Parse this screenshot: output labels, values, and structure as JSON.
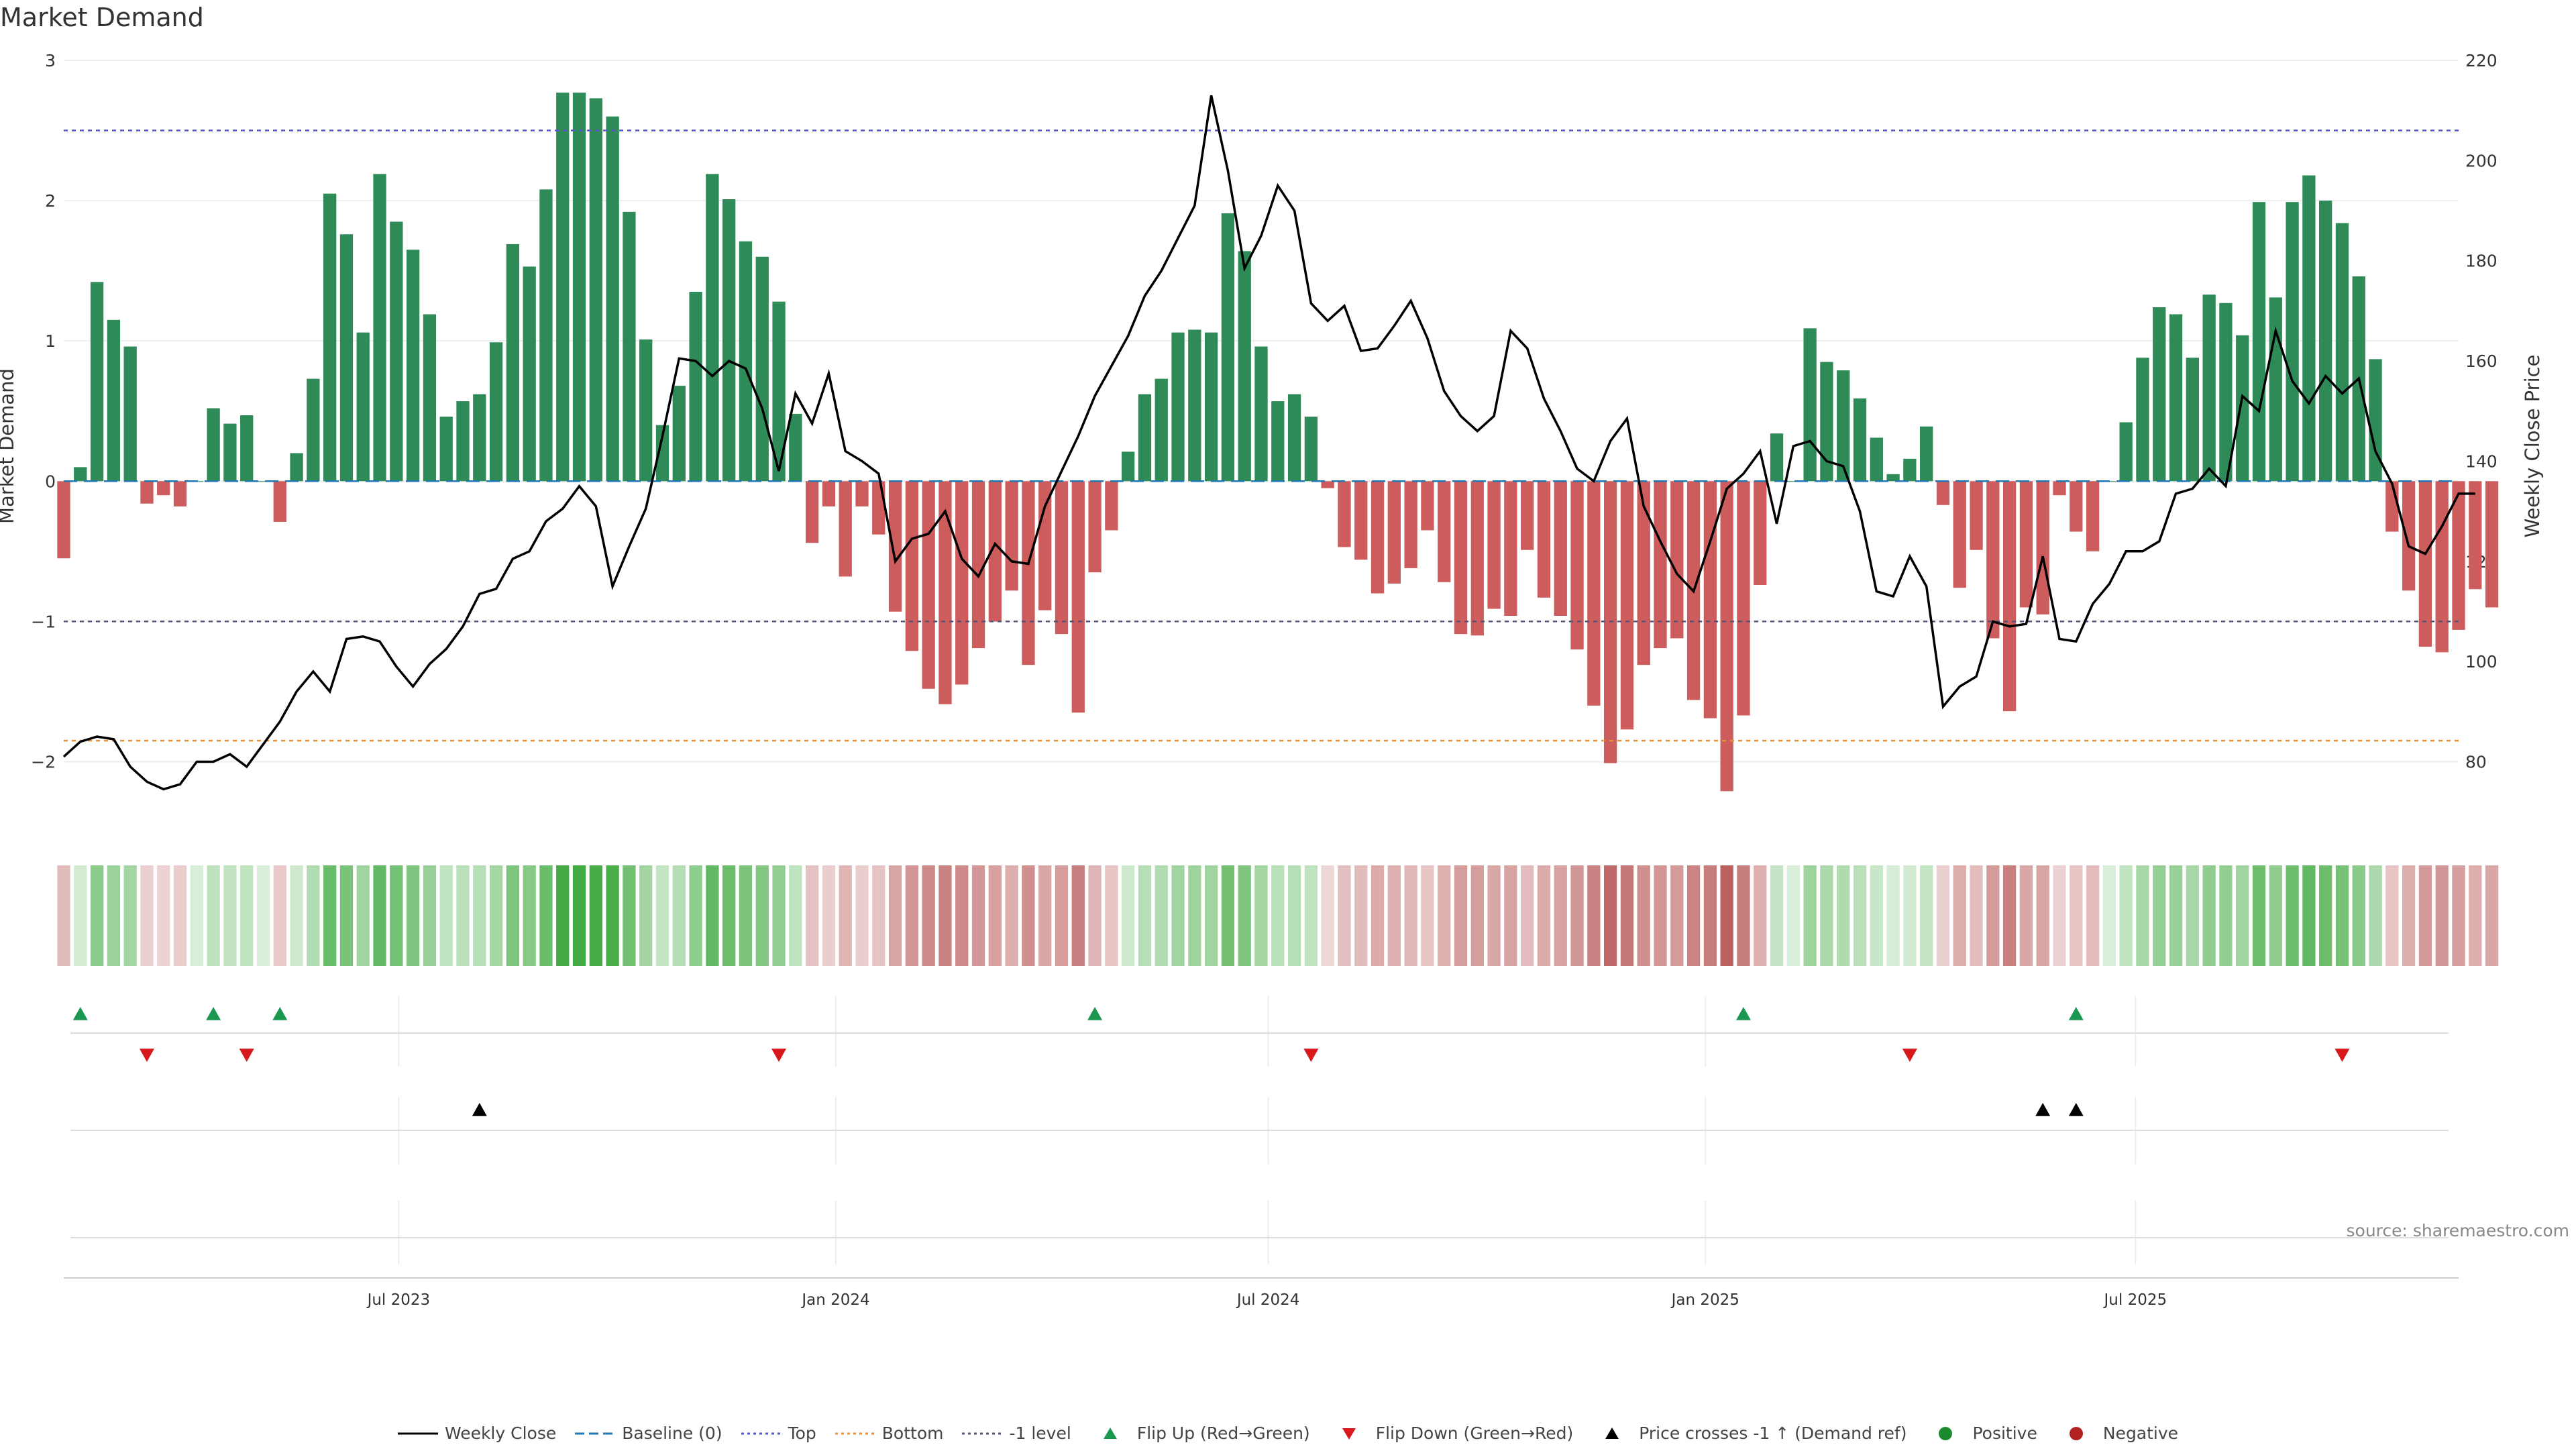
{
  "title": "Market Demand",
  "source": "source: sharemaestro.com",
  "colors": {
    "positive_bar": "#2e8b57",
    "negative_bar": "#cd5c5c",
    "price_line": "#000000",
    "baseline": "#1f77b4",
    "top_line": "#5555cc",
    "bottom_line": "#e69138",
    "minus1_line": "#555577",
    "flip_up": "#1a9850",
    "flip_down": "#d7191c",
    "cross": "#000000",
    "positive_dot": "#1a8a2e",
    "negative_dot": "#b22222"
  },
  "legend": [
    {
      "label": "Weekly Close",
      "symbol": "line-solid",
      "color": "#000000"
    },
    {
      "label": "Baseline (0)",
      "symbol": "line-dash",
      "color": "#1f77b4"
    },
    {
      "label": "Top",
      "symbol": "line-dot",
      "color": "#5555cc"
    },
    {
      "label": "Bottom",
      "symbol": "line-dot",
      "color": "#e69138"
    },
    {
      "label": "-1 level",
      "symbol": "line-dot",
      "color": "#555577"
    },
    {
      "label": "Flip Up (Red→Green)",
      "symbol": "triangle-up",
      "color": "#1a9850"
    },
    {
      "label": "Flip Down (Green→Red)",
      "symbol": "triangle-down",
      "color": "#d7191c"
    },
    {
      "label": "Price crosses -1 ↑ (Demand ref)",
      "symbol": "triangle-up",
      "color": "#000000"
    },
    {
      "label": "Positive",
      "symbol": "dot",
      "color": "#1a8a2e"
    },
    {
      "label": "Negative",
      "symbol": "dot",
      "color": "#b22222"
    }
  ],
  "chart_data": {
    "type": "bar",
    "ylabel": "Market Demand",
    "y2label": "Weekly Close Price",
    "ylim": [
      -2.5,
      3.0
    ],
    "y2lim": [
      66,
      220
    ],
    "yticks": [
      3,
      2,
      1,
      0,
      -1,
      -2
    ],
    "ytick_labels": [
      "3",
      "2",
      "1",
      "0",
      "−1",
      "−2"
    ],
    "y2ticks": [
      220,
      200,
      180,
      160,
      140,
      120,
      100,
      80
    ],
    "x_start": "2023-02-10",
    "x_end": "2025-11-14",
    "xticks": [
      {
        "date": "2023-07-01",
        "label": "Jul 2023"
      },
      {
        "date": "2024-01-01",
        "label": "Jan 2024"
      },
      {
        "date": "2024-07-01",
        "label": "Jul 2024"
      },
      {
        "date": "2025-01-01",
        "label": "Jan 2025"
      },
      {
        "date": "2025-07-01",
        "label": "Jul 2025"
      }
    ],
    "reference_lines": {
      "baseline": 0,
      "top": 2.5,
      "bottom": -1.85,
      "minus_one": -1
    },
    "grid": true,
    "series": [
      {
        "name": "Market Demand",
        "start": "2023-02-10",
        "interval_days": 7,
        "values": [
          -0.55,
          0.1,
          1.42,
          1.15,
          0.96,
          -0.16,
          -0.1,
          -0.18,
          0.0,
          0.52,
          0.41,
          0.47,
          0.0,
          -0.29,
          0.2,
          0.73,
          2.05,
          1.76,
          1.06,
          2.19,
          1.85,
          1.65,
          1.19,
          0.46,
          0.57,
          0.62,
          0.99,
          1.69,
          1.53,
          2.08,
          2.77,
          2.77,
          2.73,
          2.6,
          1.92,
          1.01,
          0.4,
          0.68,
          1.35,
          2.19,
          2.01,
          1.71,
          1.6,
          1.28,
          0.48,
          -0.44,
          -0.18,
          -0.68,
          -0.18,
          -0.38,
          -0.93,
          -1.21,
          -1.48,
          -1.59,
          -1.45,
          -1.19,
          -1.0,
          -0.78,
          -1.31,
          -0.92,
          -1.09,
          -1.65,
          -0.65,
          -0.35,
          0.21,
          0.62,
          0.73,
          1.06,
          1.08,
          1.06,
          1.91,
          1.64,
          0.96,
          0.57,
          0.62,
          0.46,
          -0.05,
          -0.47,
          -0.56,
          -0.8,
          -0.73,
          -0.62,
          -0.35,
          -0.72,
          -1.09,
          -1.1,
          -0.91,
          -0.96,
          -0.49,
          -0.83,
          -0.96,
          -1.2,
          -1.6,
          -2.01,
          -1.77,
          -1.31,
          -1.19,
          -1.12,
          -1.56,
          -1.69,
          -2.21,
          -1.67,
          -0.74,
          0.34,
          0.0,
          1.09,
          0.85,
          0.79,
          0.59,
          0.31,
          0.05,
          0.16,
          0.39,
          -0.17,
          -0.76,
          -0.49,
          -1.12,
          -1.64,
          -0.9,
          -0.95,
          -0.1,
          -0.36,
          -0.5,
          0.0,
          0.42,
          0.88,
          1.24,
          1.19,
          0.88,
          1.33,
          1.27,
          1.04,
          1.99,
          1.31,
          1.99,
          2.18,
          2.0,
          1.84,
          1.46,
          0.87,
          -0.36,
          -0.78,
          -1.18,
          -1.22,
          -1.06,
          -0.77,
          -0.9
        ]
      },
      {
        "name": "Weekly Close",
        "start": "2023-02-10",
        "interval_days": 7,
        "values": [
          81,
          84,
          85,
          84.5,
          79,
          76,
          74.5,
          75.5,
          80,
          80,
          81.5,
          79,
          83.5,
          88,
          94,
          98,
          94,
          104.5,
          105,
          104,
          99,
          95,
          99.5,
          102.5,
          107,
          113.5,
          114.5,
          120.5,
          122,
          128,
          130.5,
          135,
          131,
          115,
          123,
          130.5,
          145,
          160.5,
          160,
          157,
          160,
          158.5,
          150.5,
          138,
          153.5,
          147.5,
          157.5,
          142,
          140,
          137.5,
          120,
          124.5,
          125.5,
          130,
          120.5,
          117,
          123.5,
          120,
          119.5,
          131,
          138,
          145,
          153,
          159,
          165,
          173,
          178,
          184.5,
          191,
          213,
          198,
          178.5,
          185,
          195,
          190,
          171.5,
          168,
          171,
          162,
          162.5,
          167,
          172,
          164.5,
          154,
          149,
          146,
          149,
          166,
          162.5,
          152.5,
          146,
          138.5,
          136,
          144,
          148.5,
          131,
          124,
          117.5,
          114,
          124,
          134.5,
          137.5,
          142,
          127.5,
          143,
          144,
          140,
          139,
          130,
          114,
          113,
          121,
          115,
          91,
          95,
          97,
          108,
          107,
          107.5,
          121,
          104.5,
          104,
          111.5,
          115.5,
          122,
          122,
          124,
          133.5,
          134.5,
          138.5,
          135,
          153,
          150,
          166,
          156,
          151.5,
          157,
          153.5,
          156.5,
          142,
          135.5,
          123,
          121.5,
          127,
          133.5,
          133.5
        ]
      }
    ],
    "panels": {
      "heat_strip": "weekly color intensity of Market Demand",
      "flip_up_dates": [
        "2023-02-17",
        "2023-04-14",
        "2023-05-12",
        "2024-04-19",
        "2025-01-17",
        "2025-06-06"
      ],
      "flip_down_dates": [
        "2023-03-17",
        "2023-04-28",
        "2023-12-08",
        "2024-07-19",
        "2025-03-28",
        "2025-09-26"
      ],
      "cross_dates": [
        "2023-08-04",
        "2025-05-23",
        "2025-06-06"
      ]
    }
  }
}
